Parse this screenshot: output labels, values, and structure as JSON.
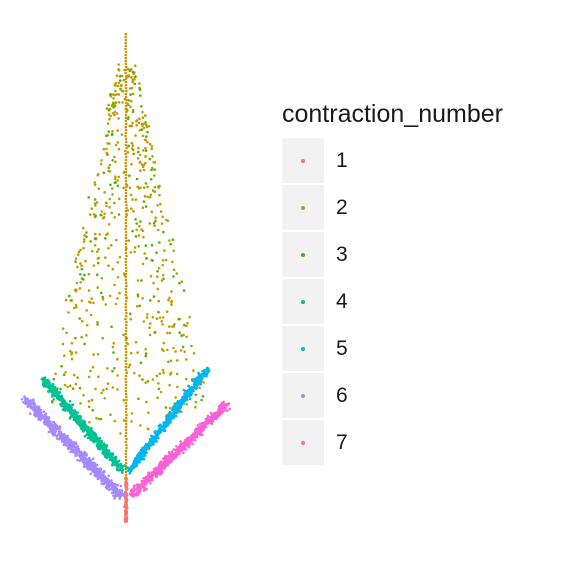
{
  "chart_data": {
    "type": "scatter",
    "title": "",
    "xlabel": "",
    "ylabel": "",
    "grid": false,
    "axes_visible": false,
    "legend": {
      "title": "contraction_number",
      "placement": "right",
      "entries": [
        "1",
        "2",
        "3",
        "4",
        "5",
        "6",
        "7"
      ]
    },
    "series": [
      {
        "name": "1",
        "color": "#F8766D"
      },
      {
        "name": "2",
        "color": "#C49A00"
      },
      {
        "name": "3",
        "color": "#53B400"
      },
      {
        "name": "4",
        "color": "#00C094"
      },
      {
        "name": "5",
        "color": "#00B6EB"
      },
      {
        "name": "6",
        "color": "#A58AFF"
      },
      {
        "name": "7",
        "color": "#FB61D7"
      }
    ],
    "description": "Barnsley fern style point cloud colored by contraction_number"
  }
}
